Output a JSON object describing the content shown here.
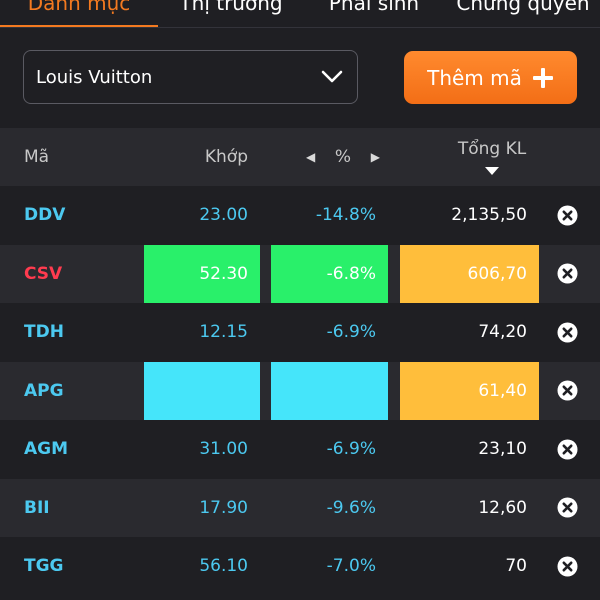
{
  "tabs": [
    {
      "label": "Danh mục",
      "active": true
    },
    {
      "label": "Thị trường",
      "active": false
    },
    {
      "label": "Phái sinh",
      "active": false
    },
    {
      "label": "Chứng quyền",
      "active": false
    }
  ],
  "watchlist": {
    "selected": "Louis Vuitton",
    "icon": "chevron-down-icon"
  },
  "add_button": {
    "label": "Thêm mã",
    "icon": "plus-icon"
  },
  "table": {
    "headers": {
      "symbol": "Mã",
      "price": "Khớp",
      "percent": "%",
      "volume": "Tổng KL"
    },
    "rows": [
      {
        "symbol": "DDV",
        "symbol_color": "#4cc9f0",
        "price": "23.00",
        "percent": "-14.8%",
        "volume": "2,135,50",
        "price_bg": "",
        "pct_bg": "",
        "vol_bg": "",
        "val_color": "#4cc9f0"
      },
      {
        "symbol": "CSV",
        "symbol_color": "#ff3b4f",
        "price": "52.30",
        "percent": "-6.8%",
        "volume": "606,70",
        "price_bg": "#29f06a",
        "pct_bg": "#29f06a",
        "vol_bg": "#ffbe3b",
        "val_color": "#ffffff"
      },
      {
        "symbol": "TDH",
        "symbol_color": "#4cc9f0",
        "price": "12.15",
        "percent": "-6.9%",
        "volume": "74,20",
        "price_bg": "",
        "pct_bg": "",
        "vol_bg": "",
        "val_color": "#4cc9f0"
      },
      {
        "symbol": "APG",
        "symbol_color": "#4cc9f0",
        "price": "",
        "percent": "",
        "volume": "61,40",
        "price_bg": "#45e5fa",
        "pct_bg": "#45e5fa",
        "vol_bg": "#ffbe3b",
        "val_color": "#ffffff"
      },
      {
        "symbol": "AGM",
        "symbol_color": "#4cc9f0",
        "price": "31.00",
        "percent": "-6.9%",
        "volume": "23,10",
        "price_bg": "",
        "pct_bg": "",
        "vol_bg": "",
        "val_color": "#4cc9f0"
      },
      {
        "symbol": "BII",
        "symbol_color": "#4cc9f0",
        "price": "17.90",
        "percent": "-9.6%",
        "volume": "12,60",
        "price_bg": "",
        "pct_bg": "",
        "vol_bg": "",
        "val_color": "#4cc9f0"
      },
      {
        "symbol": "TGG",
        "symbol_color": "#4cc9f0",
        "price": "56.10",
        "percent": "-7.0%",
        "volume": "70",
        "price_bg": "",
        "pct_bg": "",
        "vol_bg": "",
        "val_color": "#4cc9f0"
      }
    ]
  },
  "colors": {
    "accent": "#f47a20",
    "background": "#1f1f23",
    "row_alt": "#2a2a2f"
  }
}
